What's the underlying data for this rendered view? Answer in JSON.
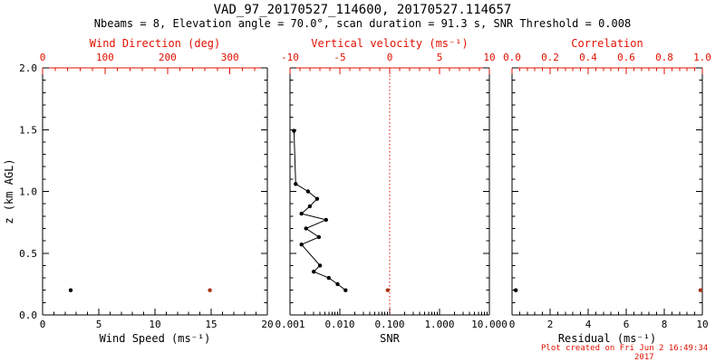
{
  "header": {
    "title": "VAD_97_20170527_114600, 20170527.114657",
    "subtitle": "Nbeams = 8, Elevation angle = 70.0°, scan duration = 91.3 s, SNR Threshold = 0.008"
  },
  "footer": {
    "line1": "Plot created on Fri Jun  2 16:49:34",
    "line2": "2017"
  },
  "colors": {
    "black": "#000000",
    "axis_red": "#e01000",
    "marker_red": "#a83418",
    "background": "#ffffff"
  },
  "chart_data": [
    {
      "type": "scatter",
      "panel": "wind",
      "y_axis": {
        "label": "z (km AGL)",
        "range": [
          0,
          2
        ],
        "ticks": [
          0.0,
          0.5,
          1.0,
          1.5,
          2.0
        ],
        "tick_labels": [
          "0.0",
          "0.5",
          "1.0",
          "1.5",
          "2.0"
        ]
      },
      "bottom_axis": {
        "label": "Wind Speed (ms⁻¹)",
        "range": [
          0,
          20
        ],
        "ticks": [
          0,
          5,
          10,
          15,
          20
        ],
        "tick_labels": [
          "0",
          "5",
          "10",
          "15",
          "20"
        ],
        "color": "black"
      },
      "top_axis": {
        "label": "Wind Direction (deg)",
        "range": [
          0,
          360
        ],
        "ticks": [
          0,
          100,
          200,
          300
        ],
        "tick_labels": [
          "0",
          "100",
          "200",
          "300"
        ],
        "color": "red"
      },
      "series": [
        {
          "name": "wind-speed",
          "axis": "bottom",
          "color": "black",
          "marker": "circle",
          "points": [
            {
              "x": 2.5,
              "z": 0.2
            }
          ]
        },
        {
          "name": "wind-direction",
          "axis": "top",
          "color": "red",
          "marker": "circle",
          "points": [
            {
              "x": 268,
              "z": 0.2
            }
          ]
        }
      ]
    },
    {
      "type": "scatter",
      "panel": "snr",
      "y_axis": {
        "range": [
          0,
          2
        ],
        "ticks": [
          0.0,
          0.5,
          1.0,
          1.5,
          2.0
        ]
      },
      "bottom_axis": {
        "label": "SNR",
        "scale": "log",
        "range": [
          0.001,
          10
        ],
        "ticks": [
          0.001,
          0.01,
          0.1,
          1,
          10
        ],
        "tick_labels": [
          "0.001",
          "0.010",
          "0.100",
          "1.000",
          "10.000"
        ],
        "color": "black"
      },
      "top_axis": {
        "label": "Vertical velocity (ms⁻¹)",
        "range": [
          -10,
          10
        ],
        "ticks": [
          -10,
          -5,
          0,
          5,
          10
        ],
        "tick_labels": [
          "-10",
          "-5",
          "0",
          "5",
          "10"
        ],
        "color": "red"
      },
      "reference_line": {
        "axis": "top",
        "value": 0,
        "color": "red",
        "style": "dotted"
      },
      "series": [
        {
          "name": "snr-profile",
          "axis": "bottom",
          "color": "black",
          "marker": "circle",
          "line": true,
          "points": [
            {
              "x": 0.013,
              "z": 0.2
            },
            {
              "x": 0.009,
              "z": 0.25
            },
            {
              "x": 0.006,
              "z": 0.3
            },
            {
              "x": 0.003,
              "z": 0.35
            },
            {
              "x": 0.004,
              "z": 0.4
            },
            {
              "x": 0.0017,
              "z": 0.57
            },
            {
              "x": 0.0038,
              "z": 0.63
            },
            {
              "x": 0.0021,
              "z": 0.7
            },
            {
              "x": 0.0053,
              "z": 0.77
            },
            {
              "x": 0.0017,
              "z": 0.82
            },
            {
              "x": 0.0025,
              "z": 0.88
            },
            {
              "x": 0.0035,
              "z": 0.94
            },
            {
              "x": 0.0023,
              "z": 1.0
            },
            {
              "x": 0.0013,
              "z": 1.06
            },
            {
              "x": 0.0012,
              "z": 1.49
            }
          ]
        },
        {
          "name": "vertical-velocity",
          "axis": "top",
          "color": "red",
          "marker": "circle",
          "points": [
            {
              "x": -0.2,
              "z": 0.2
            }
          ]
        }
      ]
    },
    {
      "type": "scatter",
      "panel": "residual",
      "y_axis": {
        "range": [
          0,
          2
        ],
        "ticks": [
          0.0,
          0.5,
          1.0,
          1.5,
          2.0
        ]
      },
      "bottom_axis": {
        "label": "Residual (ms⁻¹)",
        "range": [
          0,
          10
        ],
        "ticks": [
          0,
          2,
          4,
          6,
          8,
          10
        ],
        "tick_labels": [
          "0",
          "2",
          "4",
          "6",
          "8",
          "10"
        ],
        "color": "black"
      },
      "top_axis": {
        "label": "Correlation",
        "range": [
          0,
          1
        ],
        "ticks": [
          0.0,
          0.2,
          0.4,
          0.6,
          0.8,
          1.0
        ],
        "tick_labels": [
          "0.0",
          "0.2",
          "0.4",
          "0.6",
          "0.8",
          "1.0"
        ],
        "color": "red"
      },
      "series": [
        {
          "name": "residual",
          "axis": "bottom",
          "color": "black",
          "marker": "circle",
          "points": [
            {
              "x": 0.2,
              "z": 0.2
            }
          ]
        },
        {
          "name": "correlation",
          "axis": "top",
          "color": "red",
          "marker": "circle",
          "points": [
            {
              "x": 0.99,
              "z": 0.2
            }
          ]
        }
      ]
    }
  ]
}
